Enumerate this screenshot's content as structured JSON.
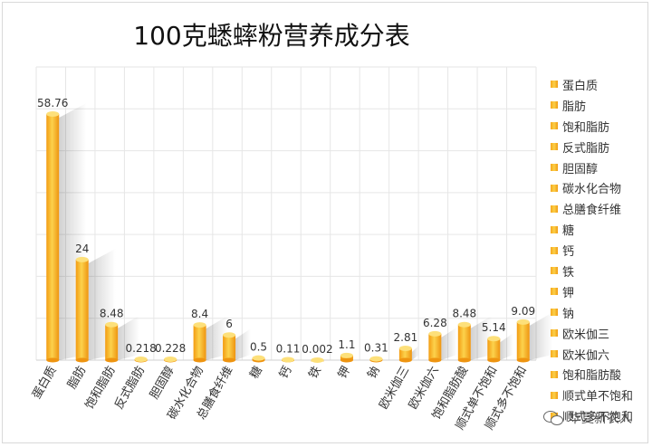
{
  "chart_data": {
    "type": "bar",
    "title": "100克蟋蟀粉营养成分表",
    "categories": [
      "蛋白质",
      "脂肪",
      "饱和脂肪",
      "反式脂肪",
      "胆固醇",
      "碳水化合物",
      "总膳食纤维",
      "糖",
      "钙",
      "铁",
      "钾",
      "钠",
      "欧米伽三",
      "欧米伽六",
      "饱和脂肪酸",
      "顺式单不饱和",
      "顺式多不饱和"
    ],
    "values": [
      58.76,
      24,
      8.48,
      0.218,
      0.228,
      8.4,
      6,
      0.5,
      0.11,
      0.002,
      1.1,
      0.31,
      2.81,
      6.28,
      8.48,
      5.14,
      9.09
    ],
    "value_labels": [
      "58.76",
      "24",
      "8.48",
      "0.218",
      "0.228",
      "8.4",
      "6",
      "0.5",
      "0.11",
      "0.002",
      "1.1",
      "0.31",
      "2.81",
      "6.28",
      "8.48",
      "5.14",
      "9.09"
    ],
    "legend": [
      "蛋白质",
      "脂肪",
      "饱和脂肪",
      "反式脂肪",
      "胆固醇",
      "碳水化合物",
      "总膳食纤维",
      "糖",
      "钙",
      "铁",
      "钾",
      "钠",
      "欧米伽三",
      "欧米伽六",
      "饱和脂肪酸",
      "顺式单不饱和",
      "顺式多不饱和"
    ],
    "legend_position": "right",
    "ylim": [
      0,
      70
    ],
    "grid": true,
    "xlabel": "",
    "ylabel": "",
    "colors": {
      "bar": "#f7a81b",
      "bar_light": "#fcd24c",
      "bar_top": "#fde07a",
      "grid": "#e6e6e6"
    }
  },
  "watermark": {
    "icon": "wechat-icon",
    "text": "华夏新农人"
  }
}
